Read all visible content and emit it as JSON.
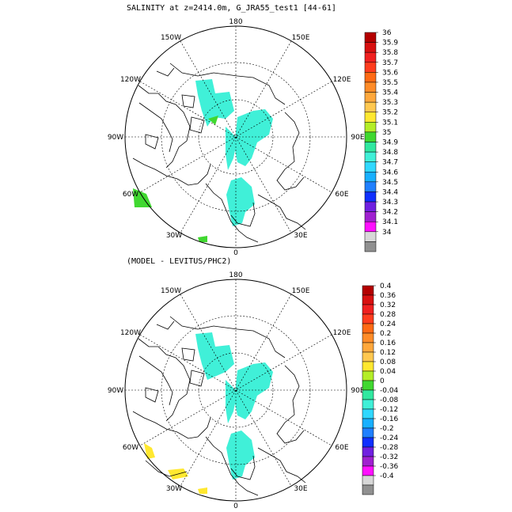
{
  "top_panel": {
    "title": "SALINITY at z=2414.0m, G_JRA55_test1 [44-61]",
    "lon_labels": [
      "180",
      "150E",
      "120E",
      "90E",
      "60E",
      "30E",
      "0",
      "30W",
      "60W",
      "90W",
      "120W",
      "150W"
    ],
    "colorbar": {
      "labels": [
        "36",
        "35.9",
        "35.8",
        "35.7",
        "35.6",
        "35.5",
        "35.4",
        "35.3",
        "35.2",
        "35.1",
        "35",
        "34.9",
        "34.8",
        "34.7",
        "34.6",
        "34.5",
        "34.4",
        "34.3",
        "34.2",
        "34.1",
        "34"
      ],
      "colors": [
        "#b40000",
        "#d81010",
        "#f02020",
        "#ff3c1e",
        "#ff6a14",
        "#ff8c28",
        "#ffa83c",
        "#ffc850",
        "#ffe830",
        "#b4ee28",
        "#40d830",
        "#30e8a0",
        "#40f0d8",
        "#30d8ff",
        "#18b0ff",
        "#2080ff",
        "#1030ff",
        "#7020e0",
        "#a020d0",
        "#ff10ff",
        "#d8d8d8",
        "#909090"
      ]
    }
  },
  "bottom_panel": {
    "title": "(MODEL - LEVITUS/PHC2)",
    "lon_labels": [
      "180",
      "150E",
      "120E",
      "90E",
      "60E",
      "30E",
      "0",
      "30W",
      "60W",
      "90W",
      "120W",
      "150W"
    ],
    "colorbar": {
      "labels": [
        "0.4",
        "0.36",
        "0.32",
        "0.28",
        "0.24",
        "0.2",
        "0.16",
        "0.12",
        "0.08",
        "0.04",
        "0",
        "-0.04",
        "-0.08",
        "-0.12",
        "-0.16",
        "-0.2",
        "-0.24",
        "-0.28",
        "-0.32",
        "-0.36",
        "-0.4"
      ],
      "colors": [
        "#b40000",
        "#d81010",
        "#f02020",
        "#ff3c1e",
        "#ff6a14",
        "#ff8c28",
        "#ffa83c",
        "#ffc850",
        "#ffe830",
        "#b4ee28",
        "#40d830",
        "#30e8a0",
        "#40f0d8",
        "#30d8ff",
        "#18b0ff",
        "#2080ff",
        "#1030ff",
        "#7020e0",
        "#a020d0",
        "#ff10ff",
        "#d8d8d8",
        "#909090"
      ]
    }
  },
  "colors": {
    "field": "#40f0d8",
    "green_patch": "#40d830",
    "yellow_patch": "#ffe830",
    "coast": "#000000"
  }
}
